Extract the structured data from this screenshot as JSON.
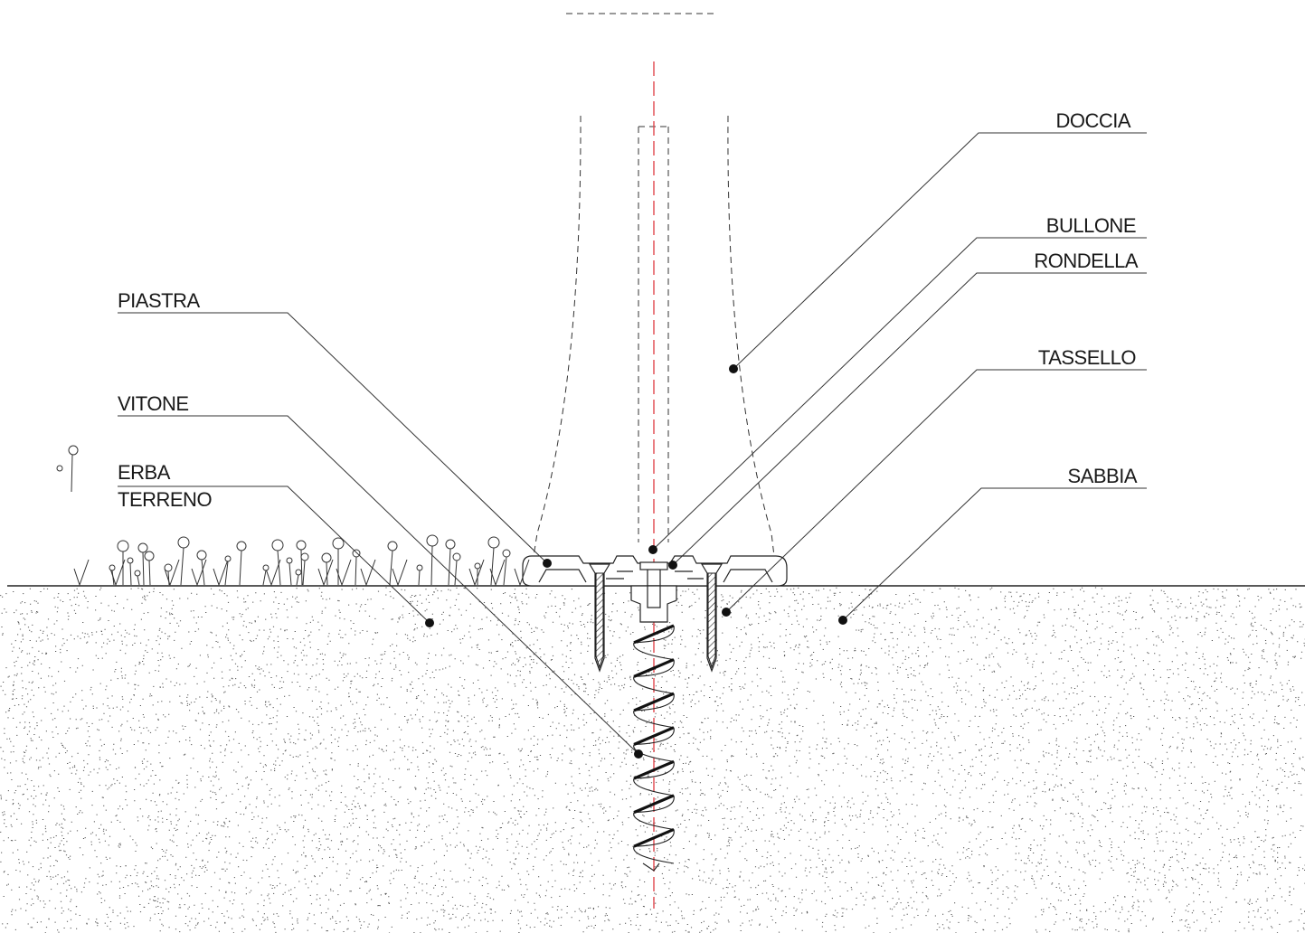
{
  "labels": {
    "doccia": "DOCCIA",
    "bullone": "BULLONE",
    "rondella": "RONDELLA",
    "tassello": "TASSELLO",
    "sabbia": "SABBIA",
    "piastra": "PIASTRA",
    "vitone": "VITONE",
    "erba": "ERBA",
    "terreno": "TERRENO"
  },
  "colors": {
    "axis_line": "#e0484e",
    "ink": "#222222",
    "soil_speckle": "#555555"
  },
  "icons": {
    "grass": "grass-flower-icon"
  }
}
